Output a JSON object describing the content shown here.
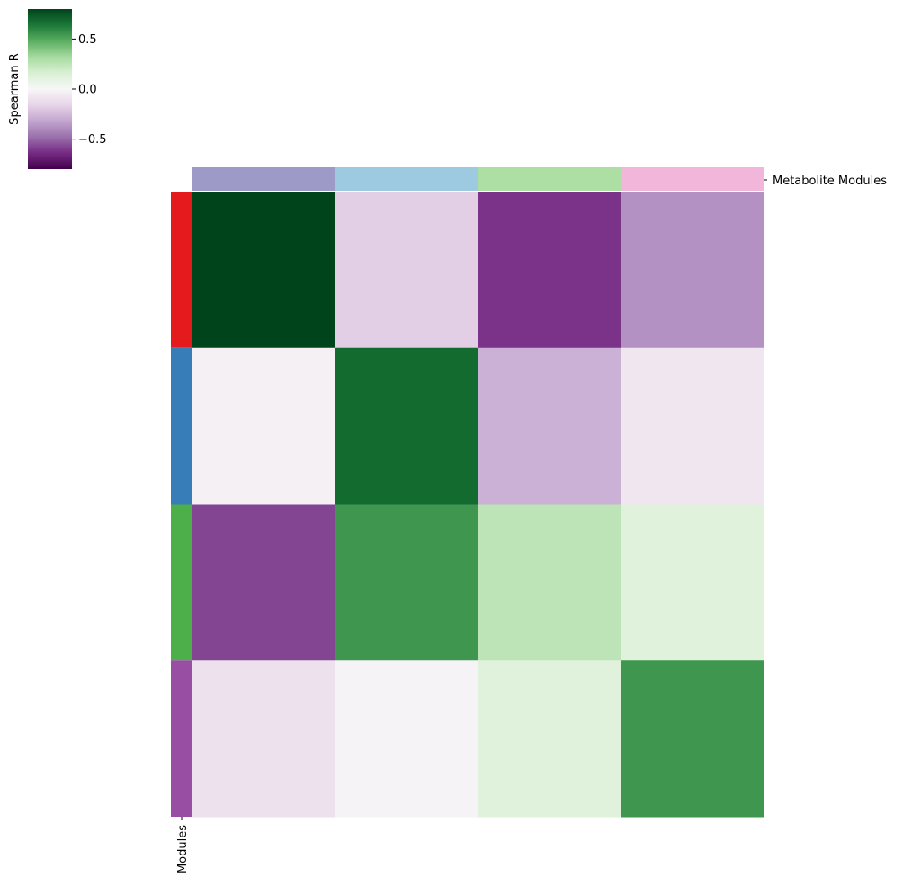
{
  "chart_data": {
    "type": "heatmap",
    "colorbar": {
      "label": "Spearman R",
      "vmin": -0.8,
      "vmax": 0.8,
      "ticks": [
        {
          "value": 0.5,
          "label": "0.5"
        },
        {
          "value": 0.0,
          "label": "0.0"
        },
        {
          "value": -0.5,
          "label": "−0.5"
        }
      ],
      "colormap": "PRGn",
      "stops": [
        "#40004b",
        "#762a83",
        "#9970ab",
        "#c2a5cf",
        "#e7d4e8",
        "#f7f7f7",
        "#d9f0d3",
        "#a6dba0",
        "#5aae61",
        "#1b7837",
        "#00441b"
      ]
    },
    "column_annotation_label": "Metabolite Modules",
    "row_annotation_label": "Modules",
    "column_colors": [
      "#9e9ac8",
      "#9ecae1",
      "#addfa5",
      "#f1b6da"
    ],
    "row_colors": [
      "#e41a1c",
      "#377eb8",
      "#4daf4a",
      "#984ea3"
    ],
    "values": [
      [
        0.8,
        -0.18,
        -0.62,
        -0.38
      ],
      [
        -0.03,
        0.68,
        -0.28,
        -0.08
      ],
      [
        -0.58,
        0.55,
        0.25,
        0.12
      ],
      [
        -0.1,
        -0.02,
        0.12,
        0.55
      ]
    ]
  }
}
